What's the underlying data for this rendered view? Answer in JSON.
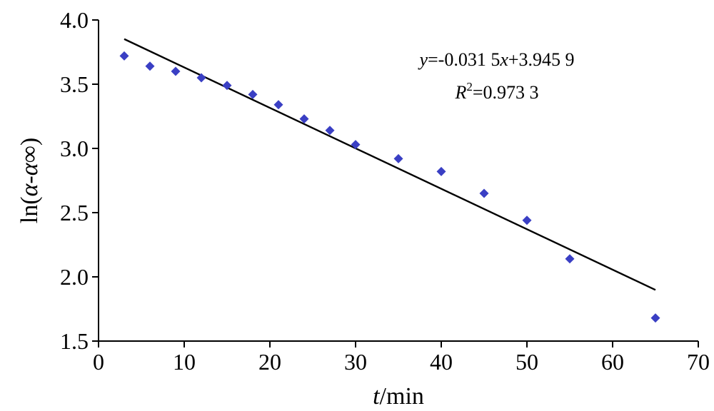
{
  "chart_data": {
    "type": "scatter",
    "title": "",
    "xlabel": {
      "var": "t",
      "unit": "/min"
    },
    "ylabel": {
      "prefix": "ln(",
      "a": "α",
      "dash": "-",
      "b": "α",
      "inf": "∞",
      "suffix": ")"
    },
    "xlim": [
      0,
      70
    ],
    "ylim": [
      1.5,
      4.0
    ],
    "xticks": [
      "0",
      "10",
      "20",
      "30",
      "40",
      "50",
      "60",
      "70"
    ],
    "yticks": [
      "1.5",
      "2.0",
      "2.5",
      "3.0",
      "3.5",
      "4.0"
    ],
    "grid": false,
    "series": [
      {
        "marker": "diamond",
        "color": "#3a3fc4",
        "x": [
          3,
          6,
          9,
          12,
          15,
          18,
          21,
          24,
          27,
          30,
          35,
          40,
          45,
          50,
          55,
          65
        ],
        "y": [
          3.72,
          3.64,
          3.6,
          3.55,
          3.49,
          3.42,
          3.34,
          3.23,
          3.14,
          3.03,
          2.92,
          2.82,
          2.65,
          2.44,
          2.14,
          1.68
        ]
      }
    ],
    "fit": {
      "slope": -0.0315,
      "intercept": 3.9459,
      "x_range": [
        3,
        65
      ],
      "color": "#000000",
      "equation": {
        "y": "y",
        "mid": "=-0.031 5",
        "x": "x",
        "rest": "+3.945 9"
      },
      "r2": {
        "r": "R",
        "sup": "2",
        "rest": "=0.973 3"
      }
    }
  }
}
